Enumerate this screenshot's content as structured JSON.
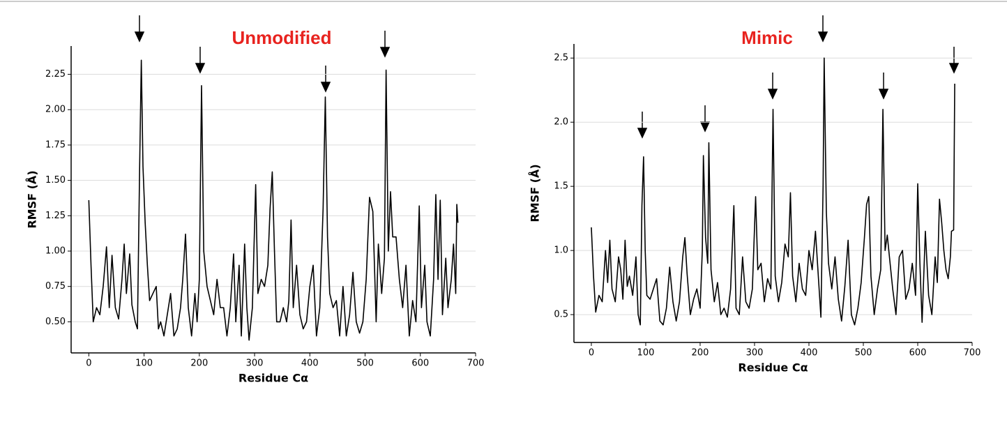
{
  "chart_data": [
    {
      "type": "line",
      "title": "Unmodified",
      "x_label": "Residue Cα",
      "y_label": "RMSF (Å)",
      "xlim": [
        -32,
        700
      ],
      "xticks": [
        0,
        100,
        200,
        300,
        400,
        500,
        600,
        700
      ],
      "ylim": [
        0.28,
        2.45
      ],
      "yticks": [
        {
          "value": 0.5,
          "label": "0.50"
        },
        {
          "value": 0.75,
          "label": "0.75"
        },
        {
          "value": 1.0,
          "label": "1.00"
        },
        {
          "value": 1.25,
          "label": "1.25"
        },
        {
          "value": 1.5,
          "label": "1.50"
        },
        {
          "value": 1.75,
          "label": "1.75"
        },
        {
          "value": 2.0,
          "label": "2.00"
        },
        {
          "value": 2.25,
          "label": "2.25"
        }
      ],
      "grid": true,
      "x": [
        0,
        4,
        8,
        14,
        20,
        26,
        32,
        37,
        42,
        48,
        54,
        60,
        64,
        68,
        74,
        78,
        84,
        88,
        92,
        95,
        98,
        102,
        106,
        110,
        116,
        122,
        126,
        130,
        136,
        142,
        148,
        154,
        160,
        166,
        170,
        175,
        180,
        186,
        192,
        196,
        200,
        204,
        208,
        214,
        220,
        226,
        232,
        238,
        244,
        250,
        256,
        262,
        266,
        272,
        276,
        282,
        286,
        290,
        296,
        302,
        306,
        312,
        318,
        324,
        328,
        332,
        336,
        340,
        346,
        352,
        358,
        362,
        366,
        370,
        376,
        382,
        388,
        394,
        400,
        406,
        412,
        418,
        424,
        428,
        432,
        436,
        442,
        448,
        454,
        460,
        466,
        472,
        478,
        484,
        490,
        496,
        502,
        508,
        514,
        520,
        524,
        530,
        535,
        538,
        542,
        546,
        550,
        556,
        562,
        568,
        574,
        580,
        586,
        592,
        598,
        602,
        608,
        612,
        618,
        624,
        628,
        632,
        636,
        640,
        646,
        650,
        656,
        660,
        664,
        666,
        668
      ],
      "series": [
        {
          "color": "#000000",
          "values": [
            1.36,
            0.9,
            0.5,
            0.6,
            0.55,
            0.75,
            1.03,
            0.6,
            0.97,
            0.6,
            0.52,
            0.8,
            1.05,
            0.7,
            0.98,
            0.62,
            0.5,
            0.45,
            1.6,
            2.35,
            1.6,
            1.2,
            0.9,
            0.65,
            0.7,
            0.75,
            0.45,
            0.5,
            0.4,
            0.55,
            0.7,
            0.4,
            0.45,
            0.6,
            0.8,
            1.12,
            0.6,
            0.4,
            0.7,
            0.5,
            0.8,
            2.17,
            1.0,
            0.75,
            0.65,
            0.55,
            0.8,
            0.6,
            0.6,
            0.4,
            0.6,
            0.98,
            0.5,
            0.9,
            0.4,
            1.05,
            0.6,
            0.37,
            0.6,
            1.47,
            0.7,
            0.8,
            0.75,
            0.9,
            1.3,
            1.56,
            1.0,
            0.5,
            0.5,
            0.6,
            0.5,
            0.65,
            1.22,
            0.6,
            0.9,
            0.55,
            0.45,
            0.5,
            0.75,
            0.9,
            0.4,
            0.6,
            1.3,
            2.09,
            1.1,
            0.7,
            0.6,
            0.65,
            0.4,
            0.75,
            0.4,
            0.55,
            0.85,
            0.5,
            0.42,
            0.5,
            0.8,
            1.38,
            1.28,
            0.5,
            1.05,
            0.7,
            0.95,
            2.28,
            1.0,
            1.42,
            1.1,
            1.1,
            0.8,
            0.6,
            0.9,
            0.4,
            0.65,
            0.5,
            1.32,
            0.6,
            0.9,
            0.5,
            0.4,
            0.8,
            1.4,
            0.8,
            1.36,
            0.55,
            0.95,
            0.6,
            0.8,
            1.05,
            0.7,
            1.33,
            1.2
          ]
        }
      ]
    },
    {
      "type": "line",
      "title": "Mimic",
      "x_label": "Residue Cα",
      "y_label": "RMSF (Å)",
      "xlim": [
        -32,
        700
      ],
      "xticks": [
        0,
        100,
        200,
        300,
        400,
        500,
        600,
        700
      ],
      "ylim": [
        0.283,
        2.61
      ],
      "yticks": [
        0.5,
        {
          "value": 1.0,
          "label": "1.0"
        },
        1.5,
        {
          "value": 2.0,
          "label": "2.0"
        },
        2.5
      ],
      "grid": true,
      "x": [
        0,
        4,
        8,
        14,
        20,
        26,
        30,
        34,
        38,
        44,
        50,
        54,
        58,
        62,
        66,
        70,
        76,
        82,
        86,
        90,
        93,
        96,
        99,
        102,
        108,
        114,
        120,
        126,
        132,
        138,
        144,
        150,
        156,
        162,
        168,
        172,
        176,
        182,
        188,
        194,
        200,
        204,
        206,
        210,
        214,
        216,
        220,
        226,
        232,
        238,
        244,
        250,
        256,
        262,
        266,
        272,
        278,
        284,
        290,
        296,
        302,
        306,
        312,
        318,
        324,
        330,
        334,
        338,
        344,
        350,
        356,
        362,
        366,
        370,
        376,
        382,
        388,
        394,
        400,
        406,
        412,
        418,
        422,
        426,
        428,
        432,
        436,
        442,
        448,
        454,
        460,
        466,
        472,
        478,
        484,
        490,
        496,
        502,
        506,
        510,
        514,
        520,
        526,
        532,
        536,
        540,
        544,
        548,
        554,
        560,
        566,
        572,
        578,
        584,
        590,
        596,
        600,
        604,
        608,
        614,
        620,
        626,
        632,
        636,
        640,
        644,
        648,
        652,
        656,
        660,
        662,
        666,
        668
      ],
      "series": [
        {
          "color": "#000000",
          "values": [
            1.18,
            0.8,
            0.52,
            0.65,
            0.6,
            1.0,
            0.75,
            1.08,
            0.7,
            0.6,
            0.95,
            0.85,
            0.62,
            1.08,
            0.72,
            0.8,
            0.65,
            0.95,
            0.5,
            0.42,
            1.35,
            1.73,
            1.0,
            0.65,
            0.62,
            0.7,
            0.78,
            0.45,
            0.42,
            0.55,
            0.87,
            0.6,
            0.45,
            0.6,
            0.95,
            1.1,
            0.82,
            0.5,
            0.62,
            0.7,
            0.55,
            1.0,
            1.74,
            1.1,
            0.9,
            1.84,
            0.85,
            0.6,
            0.75,
            0.5,
            0.55,
            0.48,
            0.7,
            1.35,
            0.55,
            0.5,
            0.95,
            0.6,
            0.55,
            0.7,
            1.42,
            0.85,
            0.9,
            0.6,
            0.78,
            0.7,
            2.1,
            0.8,
            0.6,
            0.75,
            1.05,
            0.95,
            1.45,
            0.8,
            0.6,
            0.9,
            0.7,
            0.65,
            1.0,
            0.85,
            1.15,
            0.75,
            0.48,
            1.5,
            2.5,
            1.3,
            0.9,
            0.7,
            0.95,
            0.62,
            0.45,
            0.72,
            1.08,
            0.5,
            0.42,
            0.55,
            0.75,
            1.1,
            1.36,
            1.42,
            0.8,
            0.5,
            0.7,
            0.85,
            2.1,
            1.0,
            1.12,
            0.95,
            0.7,
            0.5,
            0.95,
            1.0,
            0.62,
            0.7,
            0.9,
            0.65,
            1.52,
            0.9,
            0.44,
            1.15,
            0.65,
            0.5,
            0.95,
            0.75,
            1.4,
            1.22,
            1.0,
            0.85,
            0.78,
            0.95,
            1.15,
            1.16,
            2.3
          ]
        }
      ]
    }
  ]
}
